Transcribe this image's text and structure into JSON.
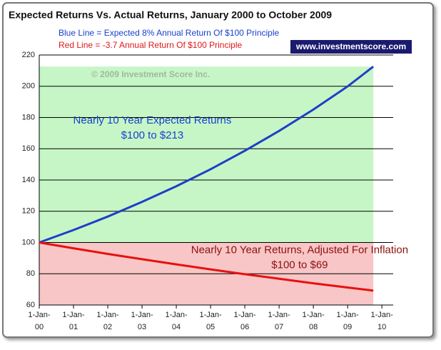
{
  "chart_data": {
    "type": "line",
    "title": "Expected Returns Vs. Actual Returns, January 2000 to October 2009",
    "subtitles": [
      {
        "text": "Blue Line = Expected 8% Annual Return Of $100 Principle",
        "color": "#1a3fd0"
      },
      {
        "text": "Red Line = -3.7 Annual Return Of $100 Principle",
        "color": "#e01818"
      }
    ],
    "badge": "www.investmentscore.com",
    "watermark": "© 2009 Investment Score Inc.",
    "annotations": [
      {
        "lines": [
          "Nearly 10 Year Expected Returns",
          "$100 to $213"
        ],
        "color": "#1a3fd0",
        "anchor": [
          2003.3,
          178
        ]
      },
      {
        "lines": [
          "Nearly 10 Year Returns, Adjusted For Inflation",
          "$100 to $69"
        ],
        "color": "#8b1010",
        "anchor": [
          2007.6,
          95
        ]
      }
    ],
    "x": [
      2000,
      2001,
      2002,
      2003,
      2004,
      2005,
      2006,
      2007,
      2008,
      2009,
      2009.75
    ],
    "series": [
      {
        "name": "Blue Line",
        "color": "#1f3fc8",
        "values": [
          100,
          108,
          116.6,
          126,
          136,
          146.9,
          158.7,
          171.4,
          185.1,
          199.9,
          212.6
        ]
      },
      {
        "name": "Red Line",
        "color": "#e81010",
        "values": [
          100,
          96.3,
          92.7,
          89.3,
          86,
          82.8,
          79.7,
          76.8,
          73.9,
          71.2,
          69.2
        ]
      }
    ],
    "xlim": [
      2000,
      2010.33
    ],
    "xticks": [
      {
        "value": 2000,
        "label": "1-Jan-00"
      },
      {
        "value": 2001,
        "label": "1-Jan-01"
      },
      {
        "value": 2002,
        "label": "1-Jan-02"
      },
      {
        "value": 2003,
        "label": "1-Jan-03"
      },
      {
        "value": 2004,
        "label": "1-Jan-04"
      },
      {
        "value": 2005,
        "label": "1-Jan-05"
      },
      {
        "value": 2006,
        "label": "1-Jan-06"
      },
      {
        "value": 2007,
        "label": "1-Jan-07"
      },
      {
        "value": 2008,
        "label": "1-Jan-08"
      },
      {
        "value": 2009,
        "label": "1-Jan-09"
      },
      {
        "value": 2010,
        "label": "1-Jan-10"
      }
    ],
    "ylim": [
      60,
      220
    ],
    "yticks": [
      60,
      80,
      100,
      120,
      140,
      160,
      180,
      200,
      220
    ],
    "grid": true,
    "band_colors": [
      "#c6f6c6",
      "#f8c6c6"
    ]
  }
}
